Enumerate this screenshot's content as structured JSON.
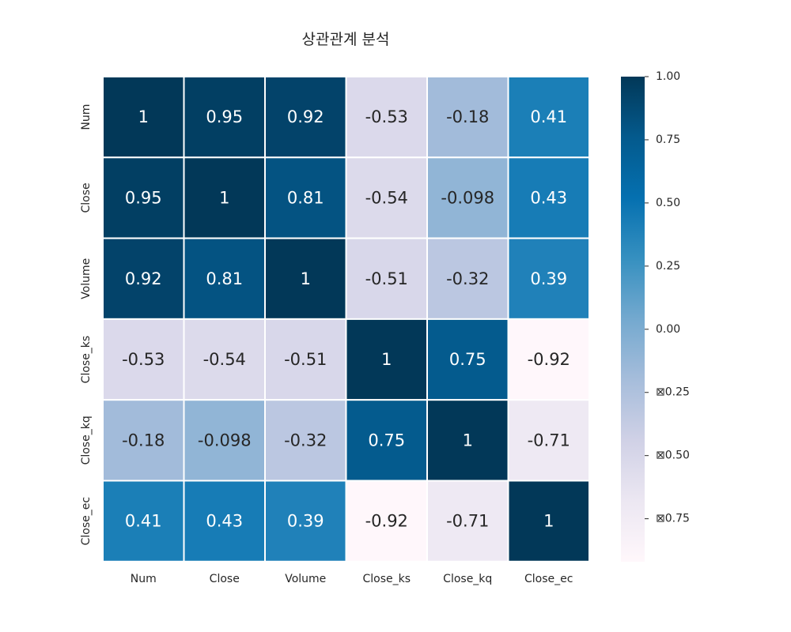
{
  "chart_data": {
    "type": "heatmap",
    "title": "상관관계 분석",
    "xlabel": "",
    "ylabel": "",
    "x_categories": [
      "Num",
      "Close",
      "Volume",
      "Close_ks",
      "Close_kq",
      "Close_ec"
    ],
    "y_categories": [
      "Num",
      "Close",
      "Volume",
      "Close_ks",
      "Close_kq",
      "Close_ec"
    ],
    "values": [
      [
        1,
        0.95,
        0.92,
        -0.53,
        -0.18,
        0.41
      ],
      [
        0.95,
        1,
        0.81,
        -0.54,
        -0.098,
        0.43
      ],
      [
        0.92,
        0.81,
        1,
        -0.51,
        -0.32,
        0.39
      ],
      [
        -0.53,
        -0.54,
        -0.51,
        1,
        0.75,
        -0.92
      ],
      [
        -0.18,
        -0.098,
        -0.32,
        0.75,
        1,
        -0.71
      ],
      [
        0.41,
        0.43,
        0.39,
        -0.92,
        -0.71,
        1
      ]
    ],
    "annotations": [
      [
        "1",
        "0.95",
        "0.92",
        "-0.53",
        "-0.18",
        "0.41"
      ],
      [
        "0.95",
        "1",
        "0.81",
        "-0.54",
        "-0.098",
        "0.43"
      ],
      [
        "0.92",
        "0.81",
        "1",
        "-0.51",
        "-0.32",
        "0.39"
      ],
      [
        "-0.53",
        "-0.54",
        "-0.51",
        "1",
        "0.75",
        "-0.92"
      ],
      [
        "-0.18",
        "-0.098",
        "-0.32",
        "0.75",
        "1",
        "-0.71"
      ],
      [
        "0.41",
        "0.43",
        "0.39",
        "-0.92",
        "-0.71",
        "1"
      ]
    ],
    "colormap": "PuBu",
    "vmin": -0.92,
    "vmax": 1.0,
    "colorbar": {
      "ticks": [
        1.0,
        0.75,
        0.5,
        0.25,
        0.0,
        -0.25,
        -0.5,
        -0.75
      ],
      "tick_labels": [
        "1.00",
        "0.75",
        "0.50",
        "0.25",
        "0.00",
        "⊠0.25",
        "⊠0.50",
        "⊠0.75"
      ],
      "placement": "right"
    },
    "grid": false
  }
}
